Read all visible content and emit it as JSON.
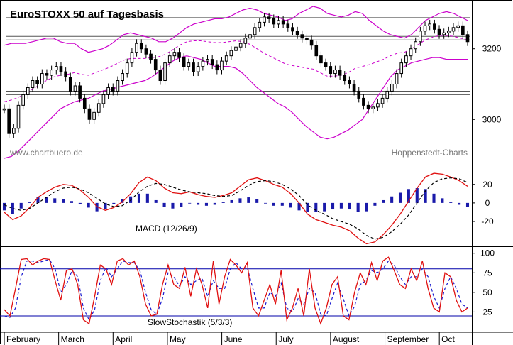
{
  "colors": {
    "candle_body": "#000000",
    "bollinger": "#cc00cc",
    "macd_line": "#e01010",
    "signal_line": "#000000",
    "histogram": "#1a1aaa",
    "stoch_k": "#e01010",
    "stoch_d": "#1a1ad0",
    "stoch_levels": "#0000aa",
    "channel_lines": "#555555"
  },
  "chart_data": [
    {
      "type": "candlestick",
      "title": "EuroSTOXX 50 auf Tagesbasis",
      "watermark_left": "www.chartbuero.de",
      "watermark_right": "Hoppenstedt-Charts",
      "y_ticks": [
        3000,
        3200
      ],
      "ylim": [
        2880,
        3330
      ],
      "x_months": [
        "February",
        "March",
        "April",
        "May",
        "June",
        "July",
        "August",
        "September",
        "Oct"
      ],
      "closes": [
        3030,
        2960,
        2975,
        3040,
        3070,
        3090,
        3110,
        3100,
        3130,
        3125,
        3140,
        3150,
        3135,
        3120,
        3080,
        3095,
        3060,
        3030,
        3000,
        3020,
        3045,
        3070,
        3090,
        3080,
        3110,
        3130,
        3160,
        3190,
        3215,
        3200,
        3185,
        3170,
        3140,
        3110,
        3160,
        3180,
        3190,
        3175,
        3150,
        3160,
        3135,
        3150,
        3165,
        3170,
        3155,
        3140,
        3165,
        3180,
        3195,
        3205,
        3215,
        3230,
        3240,
        3260,
        3275,
        3290,
        3285,
        3270,
        3280,
        3270,
        3260,
        3250,
        3240,
        3230,
        3225,
        3210,
        3180,
        3160,
        3150,
        3130,
        3140,
        3125,
        3110,
        3100,
        3080,
        3060,
        3040,
        3030,
        3035,
        3045,
        3060,
        3080,
        3100,
        3130,
        3160,
        3180,
        3200,
        3220,
        3250,
        3265,
        3270,
        3255,
        3240,
        3245,
        3250,
        3260,
        3265,
        3240,
        3220
      ],
      "bollinger_upper": [
        3210,
        3215,
        3215,
        3215,
        3220,
        3225,
        3230,
        3230,
        3220,
        3215,
        3215,
        3200,
        3190,
        3195,
        3200,
        3210,
        3225,
        3240,
        3245,
        3240,
        3235,
        3230,
        3220,
        3220,
        3230,
        3245,
        3260,
        3270,
        3275,
        3280,
        3285,
        3285,
        3290,
        3300,
        3310,
        3315,
        3310,
        3300,
        3295,
        3290,
        3280,
        3285,
        3300,
        3310,
        3320,
        3315,
        3300,
        3295,
        3290,
        3295,
        3305,
        3300,
        3280,
        3265,
        3250,
        3240,
        3235,
        3230,
        3240,
        3260,
        3280,
        3290,
        3300,
        3305,
        3300,
        3290,
        3280
      ],
      "bollinger_lower": [
        2890,
        2895,
        2910,
        2930,
        2950,
        2970,
        2990,
        3010,
        3030,
        3040,
        3050,
        3055,
        3060,
        3070,
        3080,
        3085,
        3090,
        3095,
        3100,
        3105,
        3110,
        3120,
        3135,
        3150,
        3165,
        3175,
        3180,
        3175,
        3170,
        3160,
        3150,
        3150,
        3150,
        3145,
        3130,
        3110,
        3090,
        3075,
        3060,
        3045,
        3035,
        3020,
        3000,
        2980,
        2965,
        2950,
        2945,
        2950,
        2960,
        2970,
        2985,
        3000,
        3030,
        3060,
        3090,
        3120,
        3140,
        3150,
        3160,
        3165,
        3170,
        3175,
        3175,
        3170,
        3170,
        3170,
        3170
      ],
      "horizontal_lines": [
        3288,
        3235,
        3225,
        3080,
        3070
      ]
    },
    {
      "type": "line",
      "label": "MACD (12/26/9)",
      "y_ticks": [
        20,
        0,
        -20
      ],
      "ylim": [
        -46,
        42
      ],
      "macd": [
        -10,
        -18,
        -14,
        -5,
        6,
        12,
        17,
        20,
        19,
        14,
        6,
        -4,
        -8,
        -5,
        1,
        10,
        22,
        28,
        24,
        16,
        11,
        10,
        12,
        9,
        7,
        6,
        8,
        11,
        18,
        25,
        27,
        24,
        20,
        17,
        10,
        0,
        -12,
        -18,
        -21,
        -24,
        -26,
        -30,
        -38,
        -44,
        -42,
        -34,
        -24,
        -12,
        2,
        16,
        28,
        32,
        31,
        28,
        24,
        18
      ],
      "signal": [
        -2,
        -6,
        -8,
        -6,
        0,
        6,
        12,
        16,
        17,
        15,
        11,
        5,
        -1,
        -4,
        -3,
        3,
        12,
        18,
        21,
        20,
        17,
        14,
        12,
        11,
        10,
        8,
        7,
        8,
        13,
        19,
        23,
        24,
        23,
        20,
        15,
        8,
        -2,
        -8,
        -12,
        -17,
        -20,
        -23,
        -28,
        -35,
        -39,
        -37,
        -31,
        -23,
        -13,
        0,
        13,
        22,
        26,
        27,
        26,
        22
      ],
      "histogram": [
        -8,
        -12,
        -6,
        1,
        6,
        6,
        5,
        4,
        2,
        -1,
        -5,
        -9,
        -7,
        -1,
        4,
        7,
        10,
        10,
        3,
        -4,
        -6,
        -4,
        0,
        -2,
        -3,
        -2,
        1,
        3,
        5,
        6,
        4,
        0,
        -3,
        -3,
        -5,
        -8,
        -10,
        -10,
        -9,
        -7,
        -6,
        -7,
        -10,
        -9,
        -3,
        3,
        7,
        11,
        15,
        16,
        15,
        10,
        5,
        1,
        -2,
        -4
      ]
    },
    {
      "type": "line",
      "label": "SlowStochastik (5/3/3)",
      "y_ticks": [
        100,
        75,
        50,
        25
      ],
      "ylim": [
        0,
        107
      ],
      "levels": [
        80,
        20
      ],
      "k": [
        28,
        20,
        55,
        92,
        93,
        85,
        90,
        93,
        92,
        65,
        40,
        78,
        80,
        60,
        15,
        10,
        45,
        85,
        80,
        60,
        90,
        93,
        85,
        90,
        70,
        35,
        20,
        22,
        60,
        85,
        60,
        55,
        82,
        45,
        80,
        60,
        30,
        90,
        35,
        70,
        92,
        85,
        75,
        88,
        30,
        20,
        40,
        60,
        35,
        78,
        15,
        30,
        55,
        20,
        80,
        30,
        10,
        30,
        60,
        70,
        20,
        15,
        50,
        75,
        60,
        88,
        65,
        90,
        95,
        78,
        60,
        55,
        80,
        65,
        90,
        55,
        30,
        25,
        75,
        70,
        40,
        25,
        30
      ],
      "d": [
        20,
        18,
        30,
        70,
        90,
        90,
        88,
        90,
        92,
        80,
        50,
        60,
        78,
        70,
        30,
        15,
        28,
        65,
        82,
        70,
        80,
        90,
        88,
        88,
        78,
        50,
        28,
        22,
        42,
        75,
        70,
        58,
        70,
        60,
        65,
        68,
        45,
        65,
        55,
        55,
        80,
        88,
        80,
        82,
        55,
        30,
        30,
        50,
        45,
        62,
        30,
        25,
        42,
        35,
        55,
        50,
        22,
        20,
        42,
        62,
        42,
        20,
        32,
        60,
        65,
        78,
        75,
        80,
        90,
        85,
        70,
        60,
        70,
        70,
        80,
        70,
        45,
        30,
        55,
        70,
        55,
        35,
        30
      ]
    }
  ]
}
